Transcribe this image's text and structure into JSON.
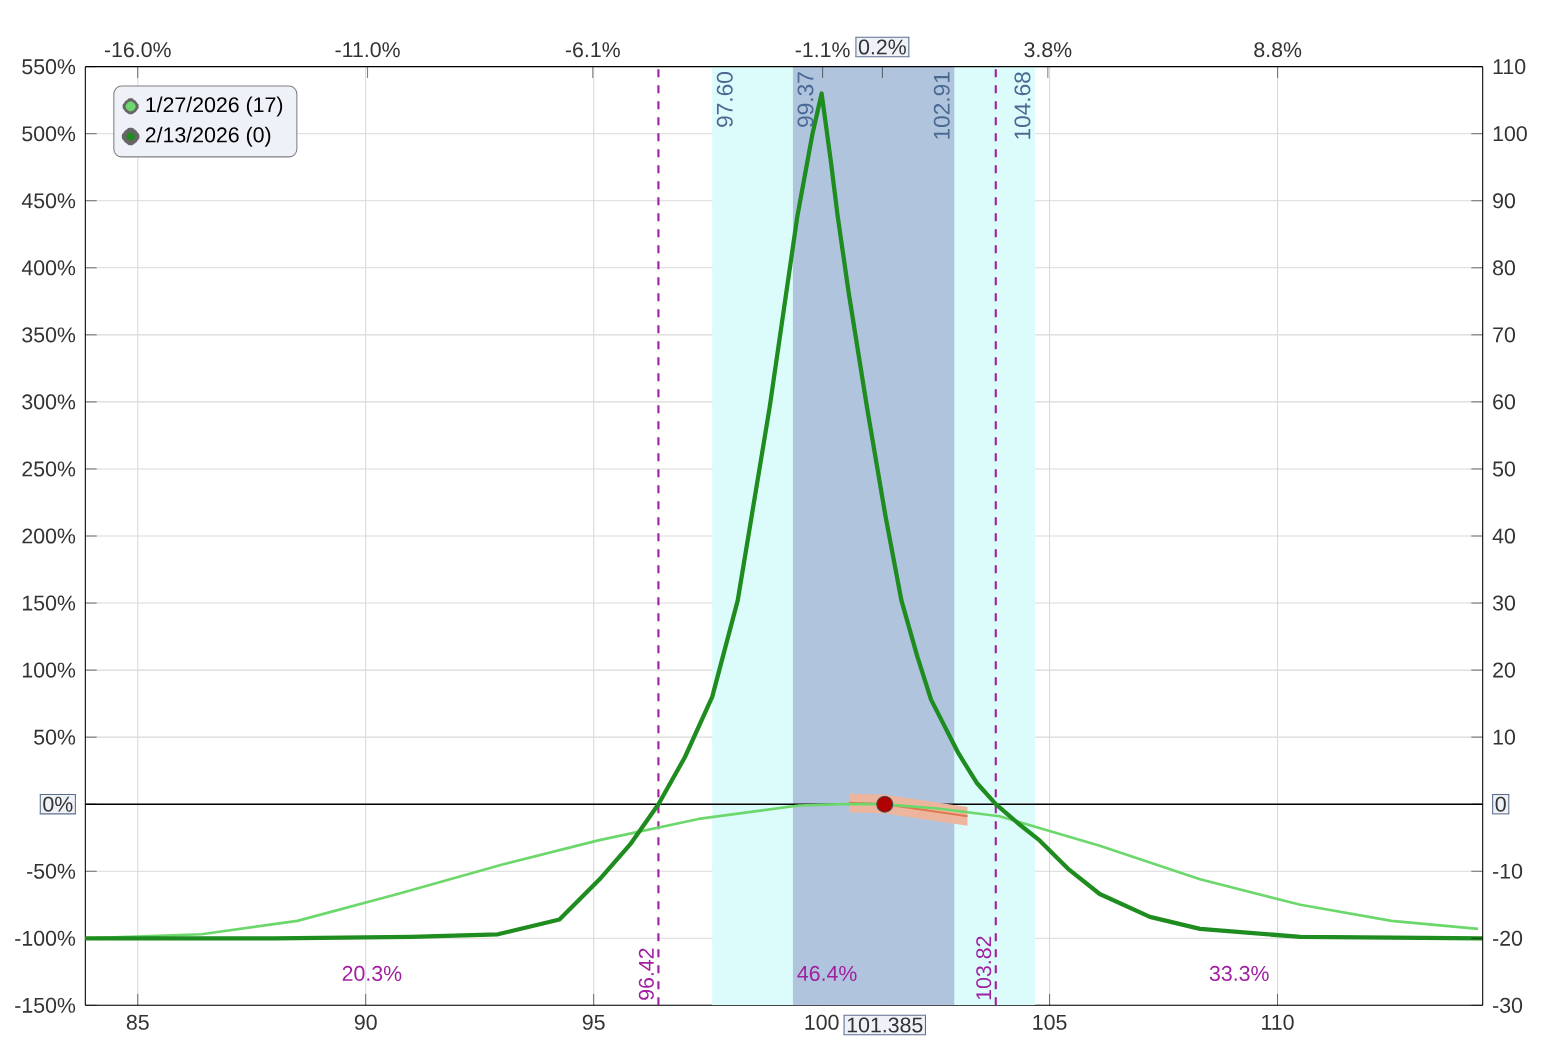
{
  "chart_data": {
    "type": "line",
    "xlim": [
      83.85,
      114.5
    ],
    "xticks": [
      85,
      90,
      95,
      100,
      105,
      110,
      {
        "value": 101.385,
        "label": "101.385"
      }
    ],
    "x2lim": [
      -17.14,
      13.26
    ],
    "x2ticks": [
      {
        "value": -16.0,
        "label": "-16.0%"
      },
      {
        "value": -11.0,
        "label": "-11.0%"
      },
      {
        "value": -6.1,
        "label": "-6.1%"
      },
      {
        "value": -1.1,
        "label": "-1.1%"
      },
      {
        "value": 3.8,
        "label": "3.8%"
      },
      {
        "value": 8.8,
        "label": "8.8%"
      },
      {
        "value": 0.2,
        "label": "0.2%"
      }
    ],
    "ylim": [
      -150,
      550
    ],
    "yticks": [
      {
        "value": -150,
        "label": "-150%"
      },
      {
        "value": -100,
        "label": "-100%"
      },
      {
        "value": -50,
        "label": "-50%"
      },
      {
        "value": 0,
        "label": "0%"
      },
      {
        "value": 50,
        "label": "50%"
      },
      {
        "value": 100,
        "label": "100%"
      },
      {
        "value": 150,
        "label": "150%"
      },
      {
        "value": 200,
        "label": "200%"
      },
      {
        "value": 250,
        "label": "250%"
      },
      {
        "value": 300,
        "label": "300%"
      },
      {
        "value": 350,
        "label": "350%"
      },
      {
        "value": 400,
        "label": "400%"
      },
      {
        "value": 450,
        "label": "450%"
      },
      {
        "value": 500,
        "label": "500%"
      },
      {
        "value": 550,
        "label": "550%"
      }
    ],
    "y2lim": [
      -30,
      110
    ],
    "y2ticks": [
      -30,
      -20,
      -10,
      0,
      10,
      20,
      30,
      40,
      50,
      60,
      70,
      80,
      90,
      100,
      110
    ],
    "grid": true,
    "legend": "top left",
    "line_style": "solid",
    "series": [
      {
        "name": "1/27/2026 (17)",
        "color": "#6cd86c",
        "x": [
          83.85,
          86.4,
          88.5,
          90.7,
          93,
          95.1,
          97.3,
          99.5,
          100.5,
          101.3,
          102.5,
          103.9,
          106.1,
          108.3,
          110.5,
          112.5,
          114.4
        ],
        "values": [
          -100,
          -97,
          -87,
          -67,
          -45,
          -27,
          -11,
          -1,
          0,
          0,
          -3,
          -9,
          -31,
          -56,
          -75,
          -87,
          -93
        ]
      },
      {
        "name": "2/13/2026 (0)",
        "color": "#1e8c1e",
        "x": [
          83.85,
          88,
          91,
          92.9,
          94.25,
          95.13,
          95.8,
          96.42,
          97,
          97.6,
          98.16,
          98.86,
          99.47,
          99.8,
          100,
          100.2,
          100.35,
          100.6,
          101,
          101.4,
          101.75,
          102.1,
          102.4,
          103,
          103.4,
          103.82,
          104.3,
          104.78,
          105.4,
          106.1,
          107.2,
          108.3,
          110.5,
          114.5
        ],
        "values": [
          -100,
          -100,
          -99,
          -97,
          -86,
          -56,
          -30,
          0,
          35,
          80,
          152,
          296,
          439,
          500,
          530,
          480,
          439,
          380,
          295,
          215,
          152,
          110,
          78,
          38,
          16,
          0,
          -14,
          -27,
          -48,
          -67,
          -84,
          -93,
          -99,
          -100
        ]
      },
      {
        "color": "#e0784e",
        "x": [
          100.6,
          101.385,
          103.2
        ],
        "values": [
          1,
          0,
          -9
        ],
        "lower": [
          -6,
          -7,
          -16
        ],
        "upper": [
          8,
          7,
          -2
        ]
      },
      {
        "type": "scatter",
        "color": "#b00000",
        "x": [
          101.385
        ],
        "values": [
          0
        ]
      }
    ],
    "bands": [
      {
        "axis": "x",
        "from": 97.6,
        "to": 104.68,
        "color": "#dcfcfc"
      },
      {
        "axis": "x",
        "from": 99.37,
        "to": 102.91,
        "color": "#b0c4de"
      }
    ],
    "ref_lines": [
      {
        "axis": "x",
        "value": 96.42,
        "label": "96.42",
        "color": "#a020a0",
        "line_style": "dashed"
      },
      {
        "axis": "x",
        "value": 103.82,
        "label": "103.82",
        "color": "#a020a0",
        "line_style": "dashed"
      },
      {
        "axis": "y",
        "value": 0,
        "color": "#000000",
        "line_style": "solid"
      }
    ],
    "annotations": [
      {
        "text": "97.60",
        "x": 97.6,
        "y": 550
      },
      {
        "text": "99.37",
        "x": 99.37,
        "y": 550
      },
      {
        "text": "102.91",
        "x": 102.91,
        "y": 550
      },
      {
        "text": "104.68",
        "x": 104.68,
        "y": 550
      },
      "20.3%",
      "46.4%",
      "33.3%"
    ]
  }
}
